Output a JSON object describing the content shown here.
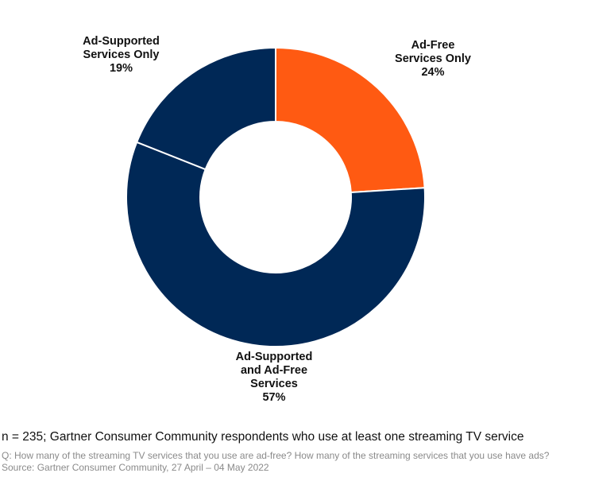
{
  "chart_data": {
    "type": "pie",
    "subtype": "donut",
    "title": "",
    "categories": [
      "Ad-Free Services Only",
      "Ad-Supported and Ad-Free Services",
      "Ad-Supported Services Only"
    ],
    "values": [
      24,
      57,
      19
    ],
    "unit": "%",
    "colors": [
      "#FF5A12",
      "#002856",
      "#002856"
    ],
    "labels": [
      {
        "lines": [
          "Ad-Free",
          "Services Only",
          "24%"
        ]
      },
      {
        "lines": [
          "Ad-Supported",
          "and Ad-Free",
          "Services",
          "57%"
        ]
      },
      {
        "lines": [
          "Ad-Supported",
          "Services Only",
          "19%"
        ]
      }
    ],
    "legend": "none"
  },
  "footer": {
    "sample": "n = 235; Gartner Consumer Community respondents who use at least one streaming TV service",
    "question": "Q: How many of the streaming TV services that you use are ad-free? How many of the streaming services that you use have ads?",
    "source": "Source: Gartner Consumer Community, 27 April – 04 May 2022"
  }
}
